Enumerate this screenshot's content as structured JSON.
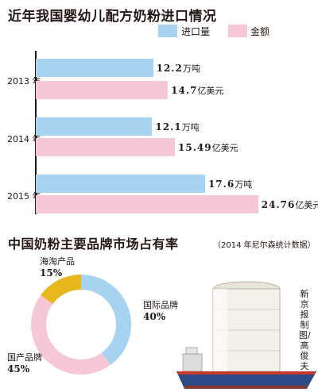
{
  "chart_data": [
    {
      "type": "bar",
      "orientation": "horizontal",
      "title": "近年我国婴幼儿配方奶粉进口情况",
      "categories": [
        "2013 年",
        "2014 年",
        "2015 年"
      ],
      "series": [
        {
          "name": "进口量",
          "values": [
            12.2,
            12.1,
            17.6
          ],
          "unit": "万吨",
          "color": "#a8d3f0"
        },
        {
          "name": "金额",
          "values": [
            14.7,
            15.49,
            24.76
          ],
          "unit": "亿美元",
          "color": "#f6c7d6"
        }
      ],
      "data_labels": [
        [
          {
            "num": "12.2",
            "unit": "万吨"
          },
          {
            "num": "12.1",
            "unit": "万吨"
          },
          {
            "num": "17.6",
            "unit": "万吨"
          }
        ],
        [
          {
            "num": "14.7",
            "unit": "亿美元"
          },
          {
            "num": "15.49",
            "unit": "亿美元"
          },
          {
            "num": "24.76",
            "unit": "亿美元"
          }
        ]
      ],
      "legend_position": "top-right",
      "grid": false
    },
    {
      "type": "pie",
      "style": "donut",
      "title": "中国奶粉主要品牌市场占有率",
      "subtitle": "（2014 年尼尔森统计数据）",
      "slices": [
        {
          "label": "国际品牌",
          "value": 40,
          "display": "40%",
          "color": "#a8d3f0"
        },
        {
          "label": "国产品牌",
          "value": 45,
          "display": "45%",
          "color": "#f6c7d6"
        },
        {
          "label": "海淘产品",
          "value": 15,
          "display": "15%",
          "color": "#e8b71d"
        }
      ]
    }
  ],
  "credit": "新京报制图/高俊夫",
  "colors": {
    "title_bar": "#231815",
    "ship_hull": "#2c4a86",
    "ship_stripe": "#c63a2e",
    "tank": "#f4f1ea"
  }
}
